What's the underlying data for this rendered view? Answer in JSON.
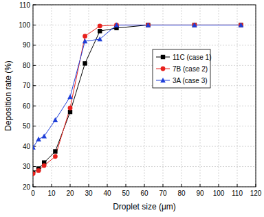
{
  "chart_data": {
    "type": "line",
    "x_label": "Droplet size (μm)",
    "y_label": "Deposition rate (%)",
    "x": [
      0,
      3,
      6,
      12,
      20,
      28,
      36,
      45,
      62,
      87,
      112
    ],
    "series": [
      {
        "name": "11C (case 1)",
        "color": "#000000",
        "marker": "square",
        "values": [
          27,
          29,
          32,
          37.5,
          57,
          81,
          97,
          98.5,
          100,
          100,
          100
        ]
      },
      {
        "name": "7B (case 2)",
        "color": "#e8201c",
        "marker": "circle",
        "values": [
          26.5,
          28,
          30.5,
          35,
          59,
          94.5,
          99.5,
          100,
          100,
          100,
          100
        ]
      },
      {
        "name": "3A (case 3)",
        "color": "#1f3fd8",
        "marker": "triangle",
        "values": [
          39.5,
          43.5,
          45,
          53,
          64.5,
          92,
          93,
          100,
          100,
          100,
          100
        ]
      }
    ],
    "xlim": [
      0,
      120
    ],
    "xticks": [
      0,
      10,
      20,
      30,
      40,
      50,
      60,
      70,
      80,
      90,
      100,
      110,
      120
    ],
    "ylim": [
      20,
      110
    ],
    "yticks": [
      20,
      30,
      40,
      50,
      60,
      70,
      80,
      90,
      100,
      110
    ],
    "grid": true,
    "legend": "upper right"
  }
}
